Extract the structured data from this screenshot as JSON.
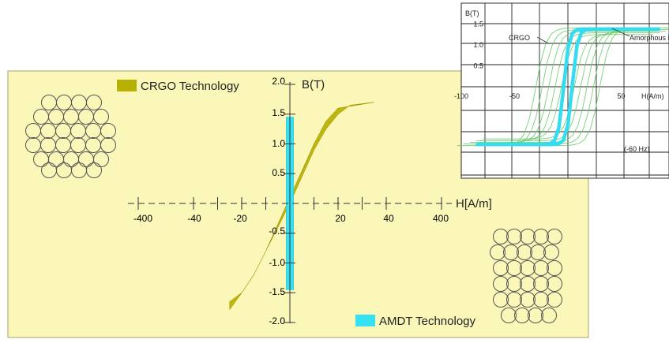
{
  "chart_data": [
    {
      "type": "area",
      "xlabel": "H[A/m]",
      "ylabel": "B(T)",
      "x_ticks_left": [
        "-400",
        "-40",
        "-20"
      ],
      "x_ticks_right": [
        "20",
        "40",
        "400"
      ],
      "y_ticks": [
        "2.0",
        "1.5",
        "1.0",
        "0.5",
        "-0.5",
        "-1.0",
        "-1.5",
        "-2.0"
      ],
      "ylim": [
        -2.0,
        2.0
      ],
      "legend": [
        {
          "name": "CRGO Technology",
          "color": "#b7b000",
          "placement": "top-left"
        },
        {
          "name": "AMDT Technology",
          "color": "#35e0f0",
          "placement": "bottom-right"
        }
      ],
      "series": [
        {
          "name": "CRGO Technology",
          "kind": "hysteresis-loop",
          "ascending": {
            "x": [
              -25,
              -20,
              -15,
              -10,
              -5,
              0,
              5,
              10,
              15,
              20,
              25,
              35
            ],
            "y": [
              -1.78,
              -1.5,
              -1.2,
              -0.8,
              -0.4,
              0.0,
              0.45,
              0.9,
              1.25,
              1.5,
              1.65,
              1.7
            ]
          },
          "descending": {
            "x": [
              35,
              20,
              15,
              10,
              5,
              0,
              -5,
              -10,
              -15,
              -20,
              -25
            ],
            "y": [
              1.7,
              1.6,
              1.38,
              1.0,
              0.55,
              0.1,
              -0.35,
              -0.8,
              -1.2,
              -1.5,
              -1.65
            ]
          }
        },
        {
          "name": "AMDT Technology",
          "kind": "hysteresis-loop",
          "ascending": {
            "x": [
              -1.5,
              -1.5,
              1.5,
              1.5
            ],
            "y": [
              -1.45,
              1.45,
              1.45,
              -1.45
            ]
          }
        }
      ]
    },
    {
      "type": "line",
      "xlabel": "H(A/m)",
      "ylabel": "B(T)",
      "x_ticks": [
        "-100",
        "-50",
        "50"
      ],
      "y_ticks": [
        "1.5",
        "1.0",
        "0.5"
      ],
      "annotations": [
        "CRGO",
        "Amorphous Metal",
        "(-60 Hz)"
      ],
      "xlim": [
        -120,
        140
      ],
      "ylim": [
        -1.5,
        1.5
      ],
      "grid": true,
      "series": [
        {
          "name": "CRGO",
          "color": "#66cc66",
          "loops": 5
        },
        {
          "name": "Amorphous Metal",
          "color": "#33dcf0",
          "x": [
            -85,
            -40,
            -10,
            -5,
            0,
            5,
            10,
            40,
            85
          ],
          "y": [
            -1.35,
            -1.3,
            -1.0,
            0.0,
            1.0,
            1.25,
            1.32,
            1.37,
            1.4
          ]
        }
      ]
    }
  ]
}
